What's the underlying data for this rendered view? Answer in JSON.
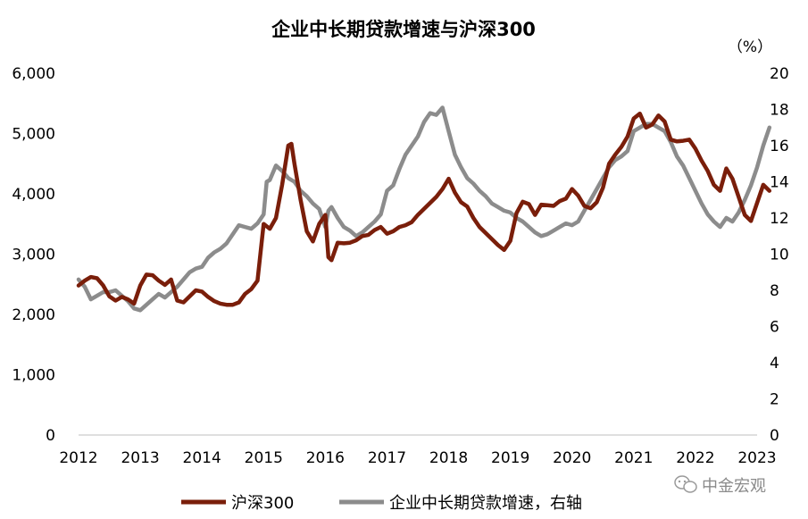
{
  "chart_data": {
    "type": "line",
    "title": "企业中长期贷款增速与沪深300",
    "right_unit_label": "（%）",
    "x_ticks": [
      "2012",
      "2013",
      "2014",
      "2015",
      "2016",
      "2017",
      "2018",
      "2019",
      "2020",
      "2021",
      "2022",
      "2023"
    ],
    "y_left": {
      "ticks": [
        "0",
        "1,000",
        "2,000",
        "3,000",
        "4,000",
        "5,000",
        "6,000"
      ],
      "range": [
        0,
        6000
      ]
    },
    "y_right": {
      "ticks": [
        "0",
        "2",
        "4",
        "6",
        "8",
        "10",
        "12",
        "14",
        "16",
        "18",
        "20"
      ],
      "range": [
        0,
        20
      ]
    },
    "grid": false,
    "legend_position": "bottom",
    "series": [
      {
        "name": "沪深300",
        "axis": "left",
        "color": "#7a1e0a",
        "points": [
          [
            2012.0,
            2480
          ],
          [
            2012.1,
            2560
          ],
          [
            2012.2,
            2620
          ],
          [
            2012.3,
            2600
          ],
          [
            2012.4,
            2480
          ],
          [
            2012.5,
            2300
          ],
          [
            2012.6,
            2230
          ],
          [
            2012.7,
            2290
          ],
          [
            2012.8,
            2250
          ],
          [
            2012.9,
            2180
          ],
          [
            2013.0,
            2480
          ],
          [
            2013.1,
            2660
          ],
          [
            2013.2,
            2650
          ],
          [
            2013.3,
            2560
          ],
          [
            2013.4,
            2490
          ],
          [
            2013.5,
            2580
          ],
          [
            2013.6,
            2230
          ],
          [
            2013.7,
            2200
          ],
          [
            2013.8,
            2300
          ],
          [
            2013.9,
            2400
          ],
          [
            2014.0,
            2380
          ],
          [
            2014.1,
            2290
          ],
          [
            2014.2,
            2220
          ],
          [
            2014.3,
            2180
          ],
          [
            2014.4,
            2160
          ],
          [
            2014.5,
            2160
          ],
          [
            2014.6,
            2200
          ],
          [
            2014.7,
            2340
          ],
          [
            2014.8,
            2420
          ],
          [
            2014.9,
            2560
          ],
          [
            2015.0,
            3500
          ],
          [
            2015.1,
            3420
          ],
          [
            2015.2,
            3600
          ],
          [
            2015.3,
            4150
          ],
          [
            2015.4,
            4800
          ],
          [
            2015.45,
            4830
          ],
          [
            2015.5,
            4500
          ],
          [
            2015.6,
            3900
          ],
          [
            2015.7,
            3380
          ],
          [
            2015.8,
            3210
          ],
          [
            2015.9,
            3500
          ],
          [
            2016.0,
            3650
          ],
          [
            2016.05,
            2950
          ],
          [
            2016.1,
            2900
          ],
          [
            2016.2,
            3190
          ],
          [
            2016.3,
            3180
          ],
          [
            2016.4,
            3190
          ],
          [
            2016.5,
            3230
          ],
          [
            2016.6,
            3300
          ],
          [
            2016.7,
            3320
          ],
          [
            2016.8,
            3400
          ],
          [
            2016.9,
            3450
          ],
          [
            2017.0,
            3340
          ],
          [
            2017.1,
            3380
          ],
          [
            2017.2,
            3450
          ],
          [
            2017.3,
            3480
          ],
          [
            2017.4,
            3530
          ],
          [
            2017.5,
            3650
          ],
          [
            2017.6,
            3750
          ],
          [
            2017.7,
            3850
          ],
          [
            2017.8,
            3950
          ],
          [
            2017.9,
            4080
          ],
          [
            2018.0,
            4250
          ],
          [
            2018.1,
            4020
          ],
          [
            2018.2,
            3860
          ],
          [
            2018.3,
            3790
          ],
          [
            2018.4,
            3600
          ],
          [
            2018.5,
            3450
          ],
          [
            2018.6,
            3350
          ],
          [
            2018.7,
            3250
          ],
          [
            2018.8,
            3150
          ],
          [
            2018.9,
            3070
          ],
          [
            2019.0,
            3220
          ],
          [
            2019.1,
            3680
          ],
          [
            2019.2,
            3870
          ],
          [
            2019.3,
            3830
          ],
          [
            2019.4,
            3650
          ],
          [
            2019.5,
            3820
          ],
          [
            2019.6,
            3810
          ],
          [
            2019.7,
            3800
          ],
          [
            2019.8,
            3880
          ],
          [
            2019.9,
            3920
          ],
          [
            2020.0,
            4080
          ],
          [
            2020.1,
            3970
          ],
          [
            2020.2,
            3800
          ],
          [
            2020.3,
            3760
          ],
          [
            2020.4,
            3860
          ],
          [
            2020.5,
            4100
          ],
          [
            2020.6,
            4500
          ],
          [
            2020.7,
            4650
          ],
          [
            2020.8,
            4780
          ],
          [
            2020.9,
            4950
          ],
          [
            2021.0,
            5250
          ],
          [
            2021.1,
            5330
          ],
          [
            2021.2,
            5100
          ],
          [
            2021.3,
            5150
          ],
          [
            2021.4,
            5300
          ],
          [
            2021.5,
            5200
          ],
          [
            2021.6,
            4900
          ],
          [
            2021.7,
            4870
          ],
          [
            2021.8,
            4880
          ],
          [
            2021.9,
            4900
          ],
          [
            2022.0,
            4750
          ],
          [
            2022.1,
            4550
          ],
          [
            2022.2,
            4380
          ],
          [
            2022.3,
            4150
          ],
          [
            2022.4,
            4050
          ],
          [
            2022.5,
            4420
          ],
          [
            2022.6,
            4250
          ],
          [
            2022.7,
            3950
          ],
          [
            2022.8,
            3650
          ],
          [
            2022.9,
            3550
          ],
          [
            2023.0,
            3850
          ],
          [
            2023.1,
            4150
          ],
          [
            2023.2,
            4050
          ]
        ]
      },
      {
        "name": "企业中长期贷款增速，右轴",
        "axis": "right",
        "color": "#8c8c8c",
        "points": [
          [
            2012.0,
            8.6
          ],
          [
            2012.1,
            8.2
          ],
          [
            2012.2,
            7.5
          ],
          [
            2012.3,
            7.7
          ],
          [
            2012.4,
            7.9
          ],
          [
            2012.5,
            7.9
          ],
          [
            2012.6,
            8.0
          ],
          [
            2012.7,
            7.7
          ],
          [
            2012.8,
            7.4
          ],
          [
            2012.9,
            7.0
          ],
          [
            2013.0,
            6.9
          ],
          [
            2013.1,
            7.2
          ],
          [
            2013.2,
            7.5
          ],
          [
            2013.3,
            7.8
          ],
          [
            2013.4,
            7.6
          ],
          [
            2013.5,
            7.9
          ],
          [
            2013.6,
            8.2
          ],
          [
            2013.7,
            8.6
          ],
          [
            2013.8,
            9.0
          ],
          [
            2013.9,
            9.2
          ],
          [
            2014.0,
            9.3
          ],
          [
            2014.1,
            9.8
          ],
          [
            2014.2,
            10.1
          ],
          [
            2014.3,
            10.3
          ],
          [
            2014.4,
            10.6
          ],
          [
            2014.5,
            11.1
          ],
          [
            2014.6,
            11.6
          ],
          [
            2014.7,
            11.5
          ],
          [
            2014.8,
            11.4
          ],
          [
            2014.9,
            11.7
          ],
          [
            2015.0,
            12.2
          ],
          [
            2015.05,
            14.0
          ],
          [
            2015.1,
            14.1
          ],
          [
            2015.2,
            14.9
          ],
          [
            2015.3,
            14.6
          ],
          [
            2015.4,
            14.2
          ],
          [
            2015.5,
            14.0
          ],
          [
            2015.6,
            13.5
          ],
          [
            2015.7,
            13.2
          ],
          [
            2015.8,
            12.8
          ],
          [
            2015.9,
            12.5
          ],
          [
            2016.0,
            11.5
          ],
          [
            2016.05,
            12.4
          ],
          [
            2016.1,
            12.6
          ],
          [
            2016.2,
            12.0
          ],
          [
            2016.3,
            11.5
          ],
          [
            2016.4,
            11.3
          ],
          [
            2016.5,
            11.0
          ],
          [
            2016.6,
            11.2
          ],
          [
            2016.7,
            11.5
          ],
          [
            2016.8,
            11.8
          ],
          [
            2016.9,
            12.2
          ],
          [
            2017.0,
            13.5
          ],
          [
            2017.1,
            13.8
          ],
          [
            2017.2,
            14.7
          ],
          [
            2017.3,
            15.5
          ],
          [
            2017.4,
            16.0
          ],
          [
            2017.5,
            16.5
          ],
          [
            2017.6,
            17.3
          ],
          [
            2017.7,
            17.8
          ],
          [
            2017.8,
            17.7
          ],
          [
            2017.9,
            18.1
          ],
          [
            2018.0,
            16.8
          ],
          [
            2018.1,
            15.5
          ],
          [
            2018.2,
            14.8
          ],
          [
            2018.3,
            14.2
          ],
          [
            2018.4,
            13.9
          ],
          [
            2018.5,
            13.5
          ],
          [
            2018.6,
            13.2
          ],
          [
            2018.7,
            12.8
          ],
          [
            2018.8,
            12.6
          ],
          [
            2018.9,
            12.4
          ],
          [
            2019.0,
            12.3
          ],
          [
            2019.1,
            12.0
          ],
          [
            2019.2,
            11.8
          ],
          [
            2019.3,
            11.5
          ],
          [
            2019.4,
            11.2
          ],
          [
            2019.5,
            11.0
          ],
          [
            2019.6,
            11.1
          ],
          [
            2019.7,
            11.3
          ],
          [
            2019.8,
            11.5
          ],
          [
            2019.9,
            11.7
          ],
          [
            2020.0,
            11.6
          ],
          [
            2020.1,
            11.8
          ],
          [
            2020.2,
            12.4
          ],
          [
            2020.3,
            13.0
          ],
          [
            2020.4,
            13.6
          ],
          [
            2020.5,
            14.2
          ],
          [
            2020.6,
            14.8
          ],
          [
            2020.7,
            15.2
          ],
          [
            2020.8,
            15.4
          ],
          [
            2020.9,
            15.7
          ],
          [
            2021.0,
            16.8
          ],
          [
            2021.1,
            17.0
          ],
          [
            2021.2,
            17.2
          ],
          [
            2021.3,
            17.2
          ],
          [
            2021.4,
            17.0
          ],
          [
            2021.5,
            16.8
          ],
          [
            2021.6,
            16.2
          ],
          [
            2021.7,
            15.4
          ],
          [
            2021.8,
            14.9
          ],
          [
            2021.9,
            14.2
          ],
          [
            2022.0,
            13.5
          ],
          [
            2022.1,
            12.8
          ],
          [
            2022.2,
            12.2
          ],
          [
            2022.3,
            11.8
          ],
          [
            2022.4,
            11.5
          ],
          [
            2022.5,
            12.0
          ],
          [
            2022.6,
            11.8
          ],
          [
            2022.7,
            12.3
          ],
          [
            2022.8,
            13.0
          ],
          [
            2022.9,
            13.8
          ],
          [
            2023.0,
            14.8
          ],
          [
            2023.1,
            16.0
          ],
          [
            2023.2,
            17.0
          ]
        ]
      }
    ]
  },
  "watermark": {
    "icon": "wechat-icon",
    "text": "中金宏观"
  }
}
